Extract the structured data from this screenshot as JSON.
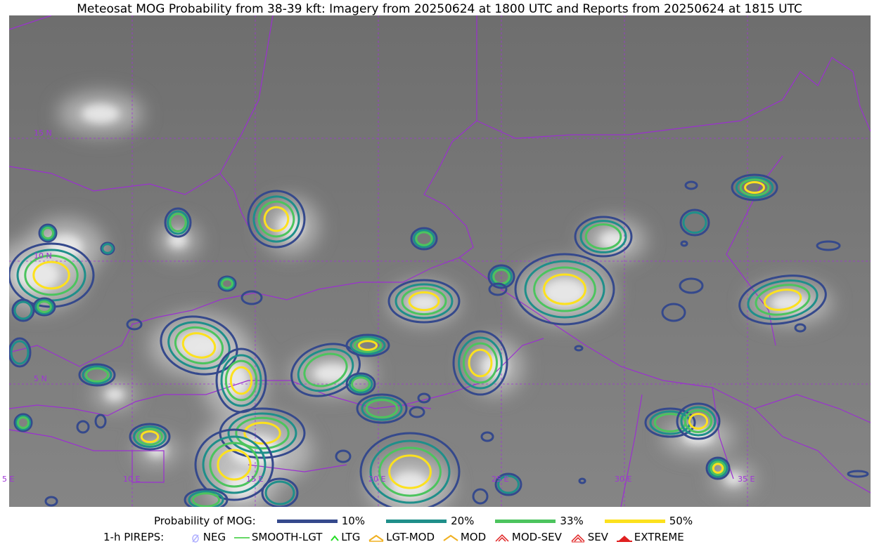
{
  "title": "Meteosat MOG Probability from 38-39 kft: Imagery from 20250624 at 1800 UTC and Reports from 20250624 at 1815 UTC",
  "map": {
    "lat_labels": [
      "15 N",
      "10 N",
      "5 N"
    ],
    "lon_labels": [
      "5 E",
      "10 E",
      "15 E",
      "20 E",
      "25 E",
      "30 E",
      "35 E"
    ],
    "grid_color": "#a033d8",
    "border_color": "#9b30d0"
  },
  "legend": {
    "prob_title": "Probability of MOG:",
    "levels": [
      {
        "label": "10%",
        "color": "#35498c"
      },
      {
        "label": "20%",
        "color": "#1f8f8a"
      },
      {
        "label": "33%",
        "color": "#4cc45e"
      },
      {
        "label": "50%",
        "color": "#fce11e"
      }
    ],
    "pirep_title": "1-h PIREPS:",
    "pireps": [
      {
        "label": "NEG",
        "color": "#b0b0ff",
        "icon": "neg-icon"
      },
      {
        "label": "SMOOTH-LGT",
        "color": "#33cc33",
        "icon": "smooth-lgt-icon"
      },
      {
        "label": "LTG",
        "color": "#22dd22",
        "icon": "ltg-icon"
      },
      {
        "label": "LGT-MOD",
        "color": "#f0b020",
        "icon": "lgt-mod-icon"
      },
      {
        "label": "MOD",
        "color": "#f0b020",
        "icon": "mod-icon"
      },
      {
        "label": "MOD-SEV",
        "color": "#e02020",
        "icon": "mod-sev-icon"
      },
      {
        "label": "SEV",
        "color": "#e02020",
        "icon": "sev-icon"
      },
      {
        "label": "EXTREME",
        "color": "#e02020",
        "icon": "extreme-icon"
      }
    ]
  }
}
